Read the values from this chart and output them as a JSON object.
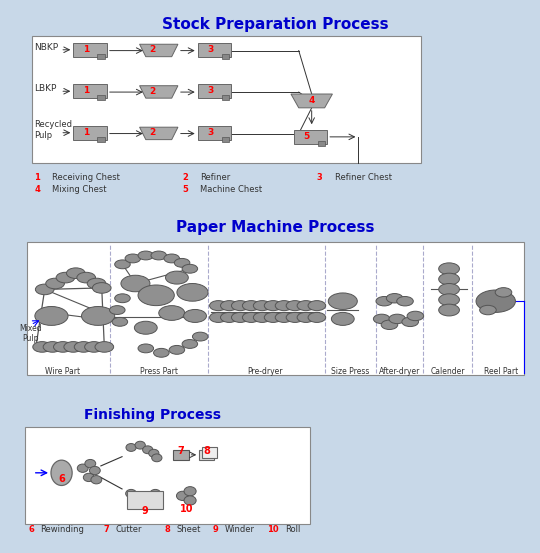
{
  "title1": "Stock Preparation Process",
  "title2": "Paper Machine Process",
  "title3": "Finishing Process",
  "bg_outer": "#dce9f5",
  "bg_inner": "#ffffff",
  "border_color": "#4472c4",
  "title_color": "#0000cc",
  "legend1": "1 Receiving Chest    2 Refiner    3 Refiner Chest\n4 Mixing Chest    5 Machine Chest",
  "legend3": "6 Rewinding  7 Cutter  8 Sheet  9 Winder  10 Roll",
  "section_labels_pm": [
    "Wire Part",
    "Press Part",
    "Pre-dryer",
    "Size Press",
    "After-dryer",
    "Calender",
    "Reel Part"
  ],
  "section_dividers_pm": [
    0.18,
    0.37,
    0.6,
    0.7,
    0.8,
    0.9
  ],
  "mixed_pulp_label": "Mixed\nPulp"
}
